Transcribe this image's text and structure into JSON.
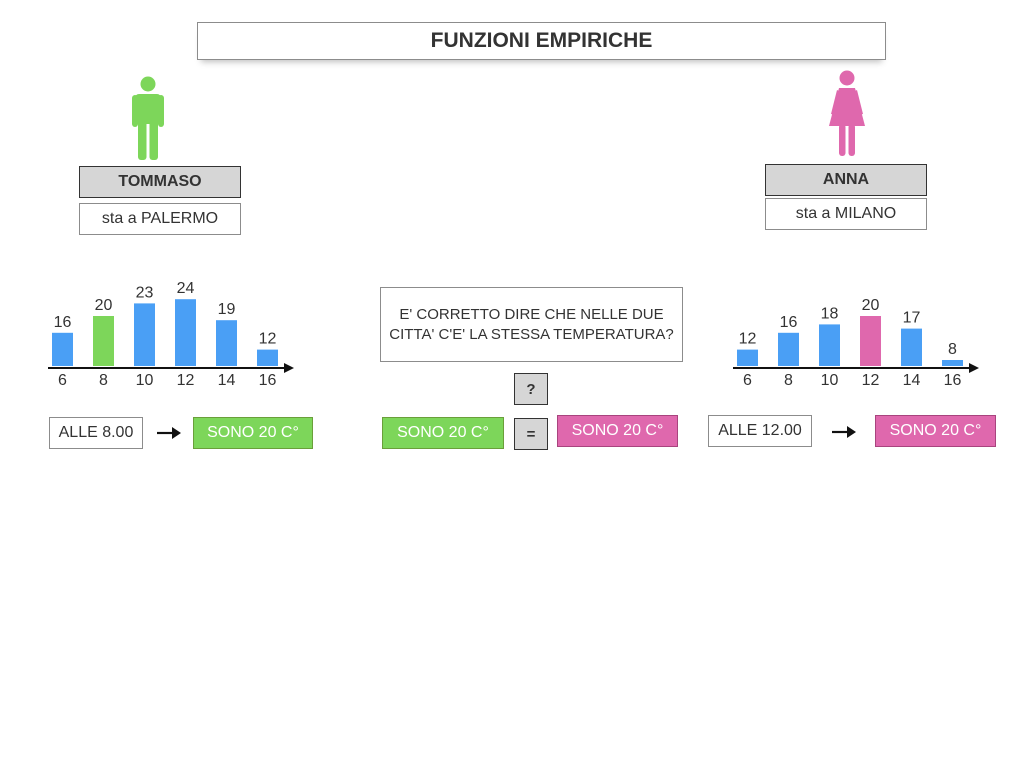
{
  "title": "FUNZIONI EMPIRICHE",
  "colors": {
    "blue": "#4a9ff5",
    "green": "#7dd65a",
    "pink": "#df68ad",
    "gray": "#d6d6d6"
  },
  "left": {
    "icon": "male-person-icon",
    "name": "TOMMASO",
    "city": "sta a PALERMO",
    "time_label": "ALLE 8.00",
    "result_label": "SONO 20 C°"
  },
  "right": {
    "icon": "female-person-icon",
    "name": "ANNA",
    "city": "sta a MILANO",
    "time_label": "ALLE 12.00",
    "result_label": "SONO 20 C°"
  },
  "center": {
    "question": "E' CORRETTO DIRE CHE NELLE DUE CITTA' C'E' LA STESSA TEMPERATURA?",
    "question_mark": "?",
    "equals": "=",
    "left_value": "SONO 20 C°",
    "right_value": "SONO 20 C°"
  },
  "chart_data": [
    {
      "type": "bar",
      "categories": [
        "6",
        "8",
        "10",
        "12",
        "14",
        "16"
      ],
      "values": [
        16,
        20,
        23,
        24,
        19,
        12
      ],
      "highlight_index": 1,
      "bar_color": "#4a9ff5",
      "highlight_color": "#7dd65a",
      "title": "",
      "xlabel": "",
      "ylabel": ""
    },
    {
      "type": "bar",
      "categories": [
        "6",
        "8",
        "10",
        "12",
        "14",
        "16"
      ],
      "values": [
        12,
        16,
        18,
        20,
        17,
        8
      ],
      "highlight_index": 3,
      "bar_color": "#4a9ff5",
      "highlight_color": "#df68ad",
      "title": "",
      "xlabel": "",
      "ylabel": ""
    }
  ]
}
